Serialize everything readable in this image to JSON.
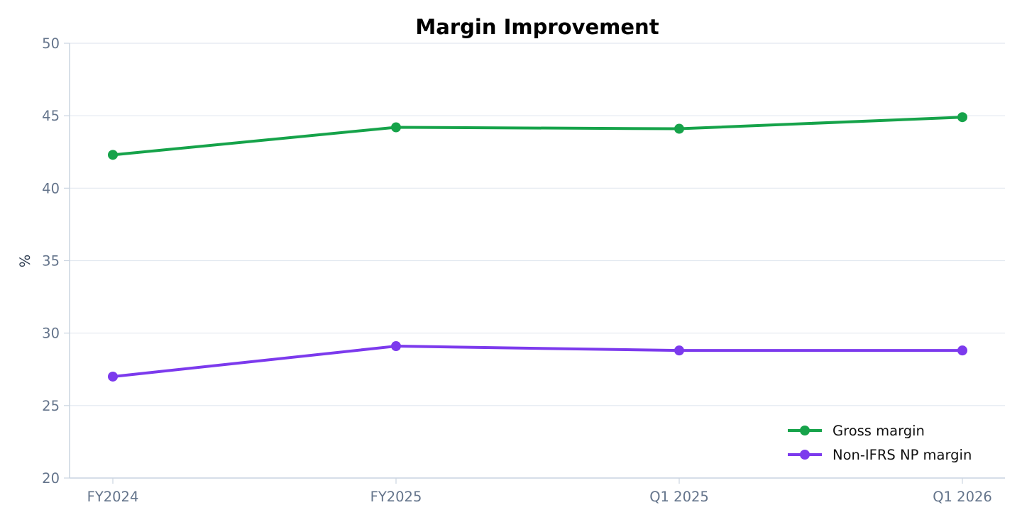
{
  "chart_data": {
    "type": "line",
    "title": "Margin Improvement",
    "xlabel": "",
    "ylabel": "%",
    "categories": [
      "FY2024",
      "FY2025",
      "Q1 2025",
      "Q1 2026"
    ],
    "ylim": [
      20,
      50
    ],
    "yticks": [
      20,
      25,
      30,
      35,
      40,
      45,
      50
    ],
    "grid": true,
    "legend_position": "bottom-right",
    "series": [
      {
        "name": "Gross margin",
        "values": [
          42.3,
          44.2,
          44.1,
          44.9
        ],
        "color": "#16a34a"
      },
      {
        "name": "Non-IFRS NP margin",
        "values": [
          27.0,
          29.1,
          28.8,
          28.8
        ],
        "color": "#7c3aed"
      }
    ]
  }
}
